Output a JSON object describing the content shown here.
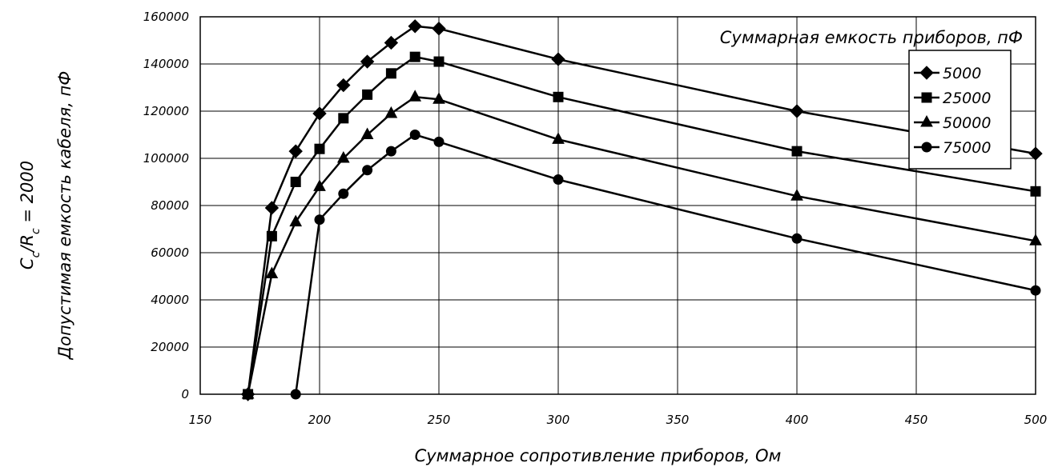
{
  "chart_data": {
    "type": "line",
    "title": "",
    "side_label": "Cc/Rc = 2000",
    "side_label_parts": {
      "c1": "C",
      "sub1": "c",
      "slash": "/R",
      "sub2": "c",
      "rest": " = 2000"
    },
    "xlabel": "Суммарное сопротивление приборов, Ом",
    "ylabel": "Допустимая емкость кабеля, пФ",
    "legend_title": "Суммарная емкость приборов, пФ",
    "legend_position": "top-right",
    "grid": true,
    "xlim": [
      150,
      500
    ],
    "ylim": [
      0,
      160000
    ],
    "x_ticks": [
      150,
      200,
      250,
      300,
      350,
      400,
      450,
      500
    ],
    "x_tick_labels": [
      "150",
      "200",
      "250",
      "300",
      "350",
      "400",
      "450",
      "500"
    ],
    "y_ticks": [
      0,
      20000,
      40000,
      60000,
      80000,
      100000,
      120000,
      140000,
      160000
    ],
    "y_tick_labels": [
      "0",
      "20000",
      "40000",
      "60000",
      "80000",
      "100000",
      "120000",
      "140000",
      "160000"
    ],
    "series": [
      {
        "name": "5000",
        "marker": "diamond",
        "points": [
          [
            170,
            0
          ],
          [
            180,
            79000
          ],
          [
            190,
            103000
          ],
          [
            200,
            119000
          ],
          [
            210,
            131000
          ],
          [
            220,
            141000
          ],
          [
            230,
            149000
          ],
          [
            240,
            156000
          ],
          [
            250,
            155000
          ],
          [
            300,
            142000
          ],
          [
            400,
            120000
          ],
          [
            500,
            102000
          ]
        ]
      },
      {
        "name": "25000",
        "marker": "square",
        "points": [
          [
            170,
            0
          ],
          [
            180,
            67000
          ],
          [
            190,
            90000
          ],
          [
            200,
            104000
          ],
          [
            210,
            117000
          ],
          [
            220,
            127000
          ],
          [
            230,
            136000
          ],
          [
            240,
            143000
          ],
          [
            250,
            141000
          ],
          [
            300,
            126000
          ],
          [
            400,
            103000
          ],
          [
            500,
            86000
          ]
        ]
      },
      {
        "name": "50000",
        "marker": "triangle",
        "points": [
          [
            170,
            0
          ],
          [
            180,
            51000
          ],
          [
            190,
            73000
          ],
          [
            200,
            88000
          ],
          [
            210,
            100000
          ],
          [
            220,
            110000
          ],
          [
            230,
            119000
          ],
          [
            240,
            126000
          ],
          [
            250,
            125000
          ],
          [
            300,
            108000
          ],
          [
            400,
            84000
          ],
          [
            500,
            65000
          ]
        ]
      },
      {
        "name": "75000",
        "marker": "circle",
        "points": [
          [
            190,
            0
          ],
          [
            200,
            74000
          ],
          [
            210,
            85000
          ],
          [
            220,
            95000
          ],
          [
            230,
            103000
          ],
          [
            240,
            110000
          ],
          [
            250,
            107000
          ],
          [
            300,
            91000
          ],
          [
            400,
            66000
          ],
          [
            500,
            44000
          ]
        ]
      }
    ]
  }
}
